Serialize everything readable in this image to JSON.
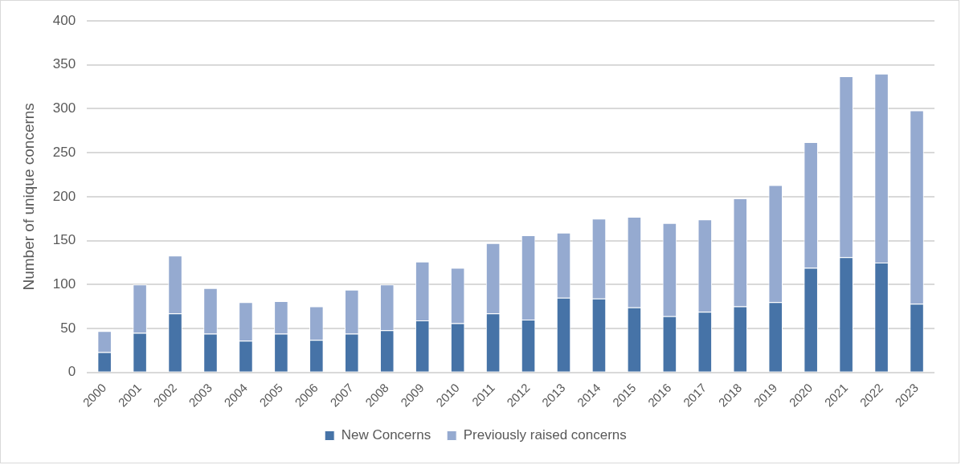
{
  "chart_data": {
    "type": "bar",
    "stacked": true,
    "ylabel": "Number of unique concerns",
    "categories": [
      "2000",
      "2001",
      "2002",
      "2003",
      "2004",
      "2005",
      "2006",
      "2007",
      "2008",
      "2009",
      "2010",
      "2011",
      "2012",
      "2013",
      "2014",
      "2015",
      "2016",
      "2017",
      "2018",
      "2019",
      "2020",
      "2021",
      "2022",
      "2023"
    ],
    "series": [
      {
        "name": "New Concerns",
        "color": "#4673a7",
        "values": [
          23,
          45,
          67,
          44,
          36,
          44,
          37,
          44,
          48,
          59,
          56,
          67,
          60,
          85,
          84,
          74,
          64,
          69,
          75,
          80,
          119,
          131,
          125,
          78
        ]
      },
      {
        "name": "Previously raised concerns",
        "color": "#95aad0",
        "values": [
          24,
          55,
          66,
          52,
          44,
          37,
          38,
          50,
          52,
          67,
          63,
          80,
          96,
          74,
          91,
          103,
          106,
          105,
          123,
          133,
          143,
          206,
          215,
          220
        ]
      }
    ],
    "ylim": [
      0,
      400
    ],
    "yticks": [
      0,
      50,
      100,
      150,
      200,
      250,
      300,
      350,
      400
    ],
    "grid": "y",
    "legend": "bottom"
  }
}
